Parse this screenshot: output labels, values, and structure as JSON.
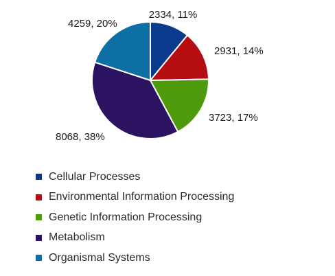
{
  "chart_data": {
    "type": "pie",
    "categories": [
      "Cellular Processes",
      "Environmental Information Processing",
      "Genetic Information Processing",
      "Metabolism",
      "Organismal Systems"
    ],
    "values": [
      2334,
      2931,
      3723,
      8068,
      4259
    ],
    "percent_labels": [
      "11%",
      "14%",
      "17%",
      "38%",
      "20%"
    ],
    "slice_labels": [
      "2334, 11%",
      "2931, 14%",
      "3723, 17%",
      "8068, 38%",
      "4259, 20%"
    ],
    "colors": [
      "#0a3a8c",
      "#b50d12",
      "#4e9a0c",
      "#2b1361",
      "#0d6fa3"
    ],
    "start_angle_deg": 0,
    "direction": "clockwise",
    "legend_position": "bottom-left"
  }
}
